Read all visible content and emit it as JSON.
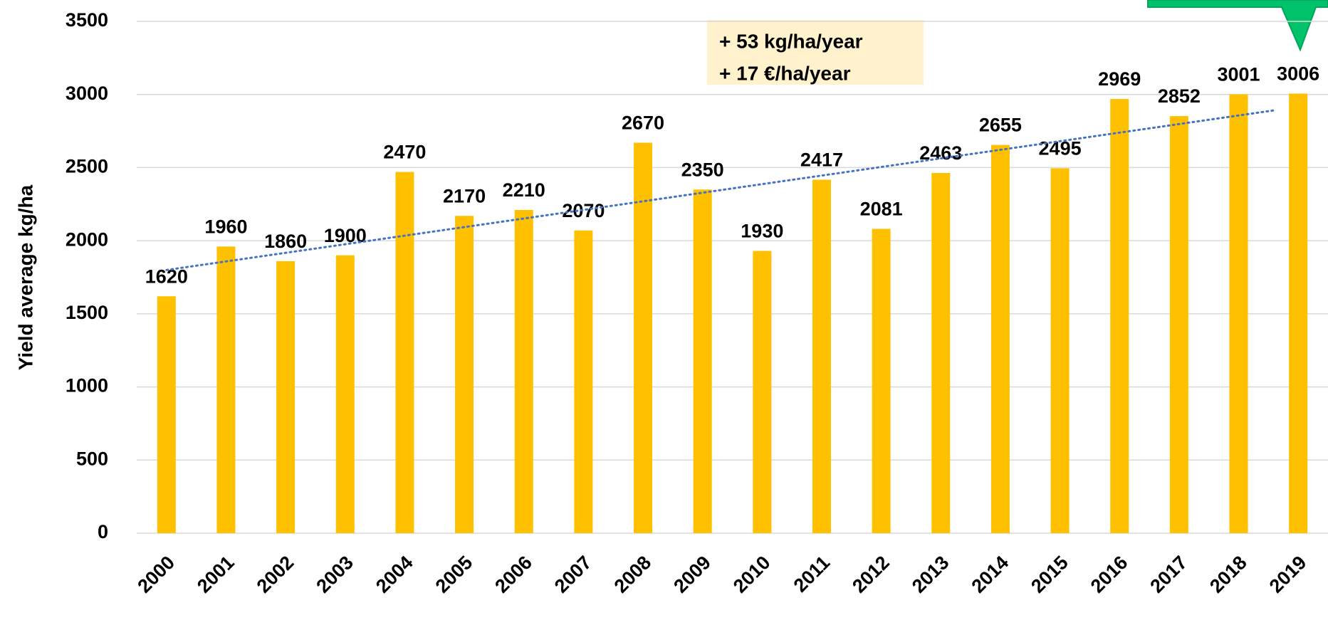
{
  "chart_data": {
    "type": "bar",
    "y_label": "Yield average kg/ha",
    "categories": [
      "2000",
      "2001",
      "2002",
      "2003",
      "2004",
      "2005",
      "2006",
      "2007",
      "2008",
      "2009",
      "2010",
      "2011",
      "2012",
      "2013",
      "2014",
      "2015",
      "2016",
      "2017",
      "2018",
      "2019"
    ],
    "values": [
      1620,
      1960,
      1860,
      1900,
      2470,
      2170,
      2210,
      2070,
      2670,
      2350,
      1930,
      2417,
      2081,
      2463,
      2655,
      2495,
      2969,
      2852,
      3001,
      3006
    ],
    "color": "#ffc000",
    "ylim": [
      0,
      3500
    ],
    "yticks": [
      0,
      500,
      1000,
      1500,
      2000,
      2500,
      3000,
      3500
    ],
    "grid": true,
    "trendline": true,
    "trendline_color": "#4472c4",
    "annotations": [
      "+ 53 kg/ha/year",
      "+ 17 €/ha/year"
    ]
  }
}
